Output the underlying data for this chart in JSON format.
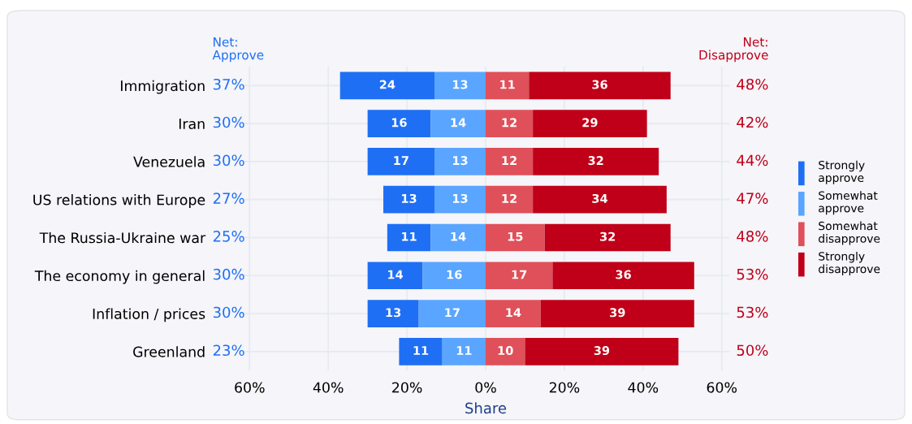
{
  "chart_data": {
    "type": "bar",
    "orientation": "horizontal",
    "xlabel": "Share",
    "categories": [
      "Immigration",
      "Iran",
      "Venezuela",
      "US relations with Europe",
      "The Russia-Ukraine war",
      "The economy in general",
      "Inflation / prices",
      "Greenland"
    ],
    "series": [
      {
        "name": "Strongly\napprove",
        "color": "#1f6ff5",
        "values": [
          24,
          16,
          17,
          13,
          11,
          14,
          13,
          11
        ],
        "base": [
          -37,
          -30,
          -30,
          -26,
          -25,
          -30,
          -30,
          -22
        ]
      },
      {
        "name": "Somewhat\napprove",
        "color": "#5aa5ff",
        "values": [
          13,
          14,
          13,
          13,
          14,
          16,
          17,
          11
        ],
        "base": [
          -13,
          -14,
          -13,
          -13,
          -14,
          -16,
          -17,
          -11
        ]
      },
      {
        "name": "Somewhat\ndisapprove",
        "color": "#e0505a",
        "values": [
          11,
          12,
          12,
          12,
          15,
          17,
          14,
          10
        ],
        "base": [
          0,
          0,
          0,
          0,
          0,
          0,
          0,
          0
        ]
      },
      {
        "name": "Strongly\ndisapprove",
        "color": "#c00018",
        "values": [
          36,
          29,
          32,
          34,
          32,
          36,
          39,
          39
        ],
        "base": [
          11,
          12,
          12,
          12,
          15,
          17,
          14,
          10
        ]
      }
    ],
    "data_labels": true,
    "xlim": [
      -62,
      62
    ],
    "xticks": [
      {
        "value": -60,
        "label": "60%"
      },
      {
        "value": -40,
        "label": "40%"
      },
      {
        "value": -20,
        "label": "20%"
      },
      {
        "value": 0,
        "label": "0%"
      },
      {
        "value": 20,
        "label": "20%"
      },
      {
        "value": 40,
        "label": "40%"
      },
      {
        "value": 60,
        "label": "60%"
      }
    ],
    "grid": true,
    "legend": "right",
    "annotations": [
      "Net:\nApprove",
      "Net:\nDisapprove",
      "37%",
      "30%",
      "30%",
      "27%",
      "25%",
      "30%",
      "30%",
      "23%",
      "48%",
      "42%",
      "44%",
      "47%",
      "48%",
      "53%",
      "53%",
      "50%"
    ]
  }
}
